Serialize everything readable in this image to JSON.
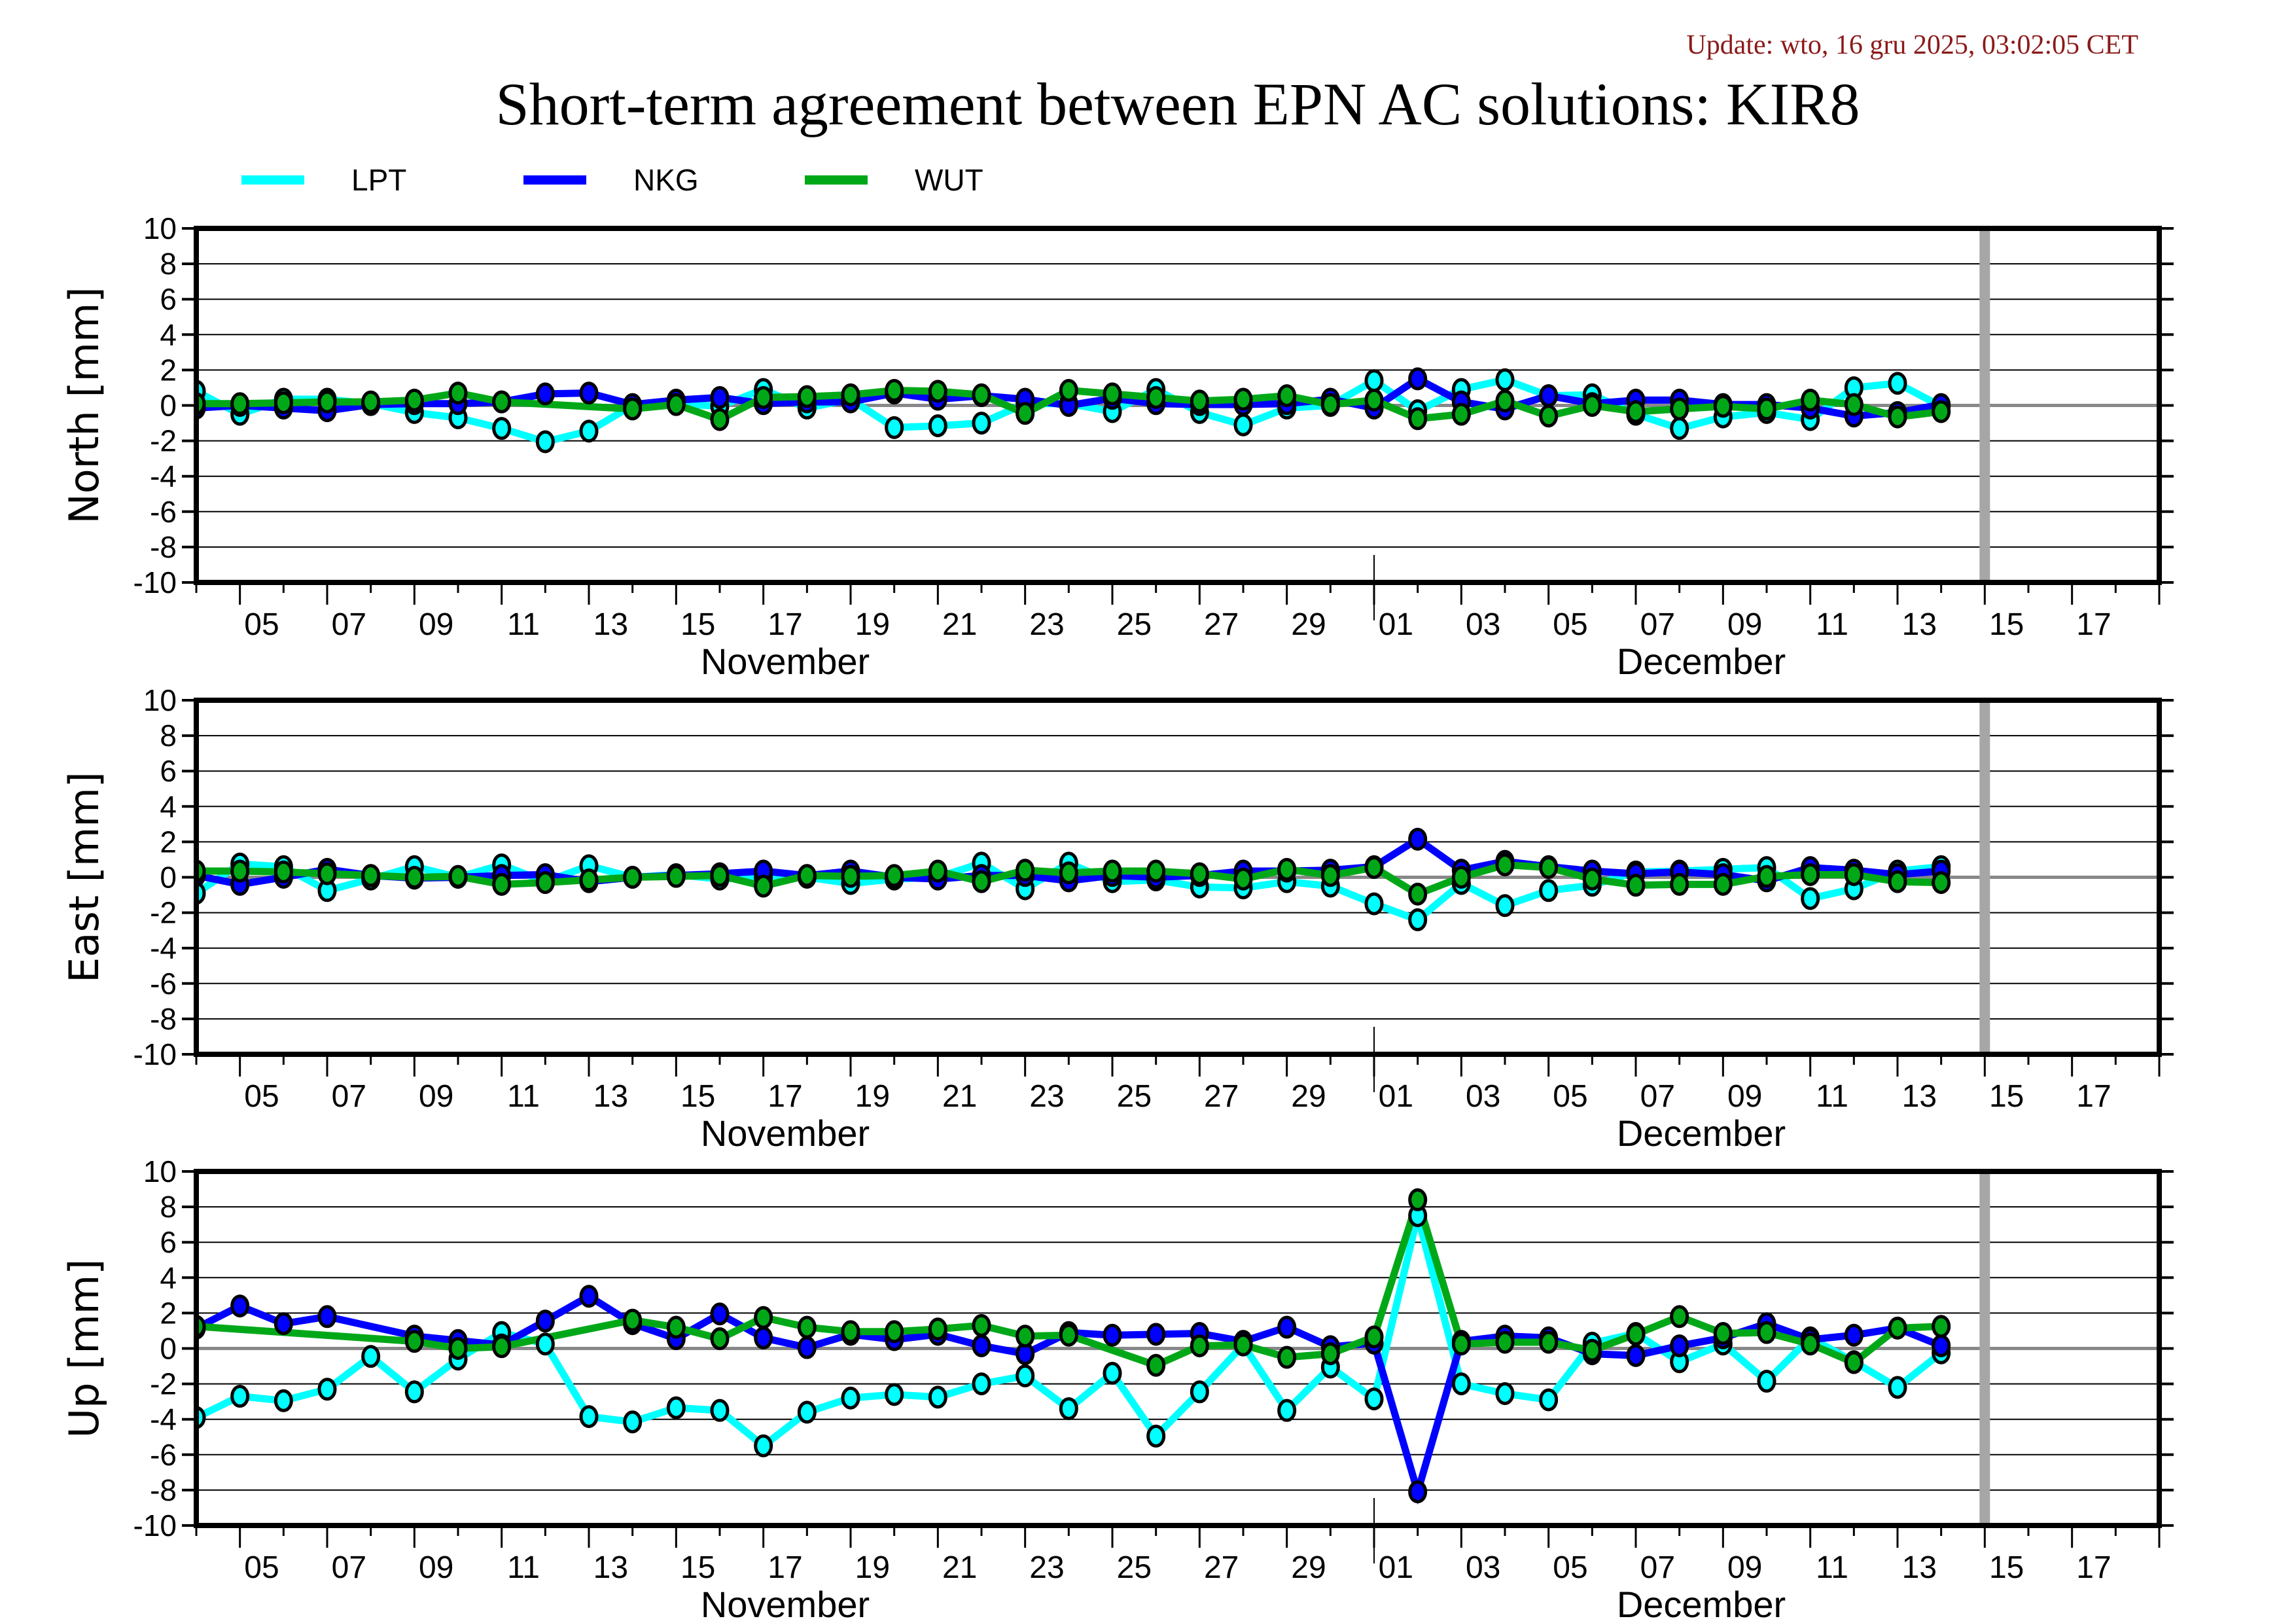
{
  "header": {
    "update": "Update: wto, 16 gru 2025, 03:02:05 CET",
    "title": "Short-term agreement between EPN AC solutions: KIR8"
  },
  "chart_data": {
    "type": "line",
    "title": "Short-term agreement between EPN AC solutions: KIR8",
    "station": "KIR8",
    "legend": {
      "placement": "top-left",
      "entries": [
        {
          "name": "LPT",
          "color": "#00ffff"
        },
        {
          "name": "NKG",
          "color": "#0000ff"
        },
        {
          "name": "WUT",
          "color": "#00a818"
        }
      ]
    },
    "x_axis": {
      "type": "date",
      "range": [
        "2025-11-04",
        "2025-12-19"
      ],
      "tick_labels": [
        "05",
        "07",
        "09",
        "11",
        "13",
        "15",
        "17",
        "19",
        "21",
        "23",
        "25",
        "27",
        "29",
        "01",
        "03",
        "05",
        "07",
        "09",
        "11",
        "13",
        "15",
        "17"
      ],
      "tick_label_days": [
        5,
        7,
        9,
        11,
        13,
        15,
        17,
        19,
        21,
        23,
        25,
        27,
        29,
        31,
        33,
        35,
        37,
        39,
        41,
        43,
        45,
        47
      ],
      "month_labels": [
        {
          "label": "November",
          "center_day": 17.5
        },
        {
          "label": "December",
          "center_day": 38.5
        }
      ],
      "month_boundary_day": 31,
      "marker_line_day": 45
    },
    "y_ticks": [
      "10",
      "8",
      "6",
      "4",
      "2",
      "0",
      "-2",
      "-4",
      "-6",
      "-8",
      "-10"
    ],
    "grid": true,
    "day_offset_origin": "2025-11-01",
    "x_days": [
      4,
      5,
      6,
      7,
      8,
      9,
      10,
      11,
      12,
      13,
      14,
      15,
      16,
      17,
      18,
      19,
      20,
      21,
      22,
      23,
      24,
      25,
      26,
      27,
      28,
      29,
      30,
      31,
      32,
      33,
      34,
      35,
      36,
      37,
      38,
      39,
      40,
      41,
      42,
      43,
      44
    ],
    "panels": [
      {
        "id": "north",
        "ylabel": "North [mm]",
        "ylim": [
          -10,
          10
        ],
        "series": [
          {
            "name": "LPT",
            "values": [
              0.8,
              -0.5,
              0.35,
              0.35,
              0.1,
              -0.4,
              -0.7,
              -1.3,
              -2.05,
              -1.45,
              0.0,
              0.1,
              -0.05,
              0.9,
              -0.15,
              0.35,
              -1.25,
              -1.15,
              -1.0,
              0.1,
              0.1,
              -0.35,
              0.9,
              -0.4,
              -1.1,
              -0.15,
              0.0,
              1.4,
              -0.3,
              0.9,
              1.45,
              0.55,
              0.6,
              -0.5,
              -1.3,
              -0.65,
              -0.4,
              -0.8,
              1.0,
              1.25,
              -0.05
            ]
          },
          {
            "name": "NKG",
            "values": [
              -0.15,
              0.0,
              -0.15,
              -0.3,
              0.05,
              0.1,
              0.1,
              0.2,
              0.65,
              0.7,
              0.05,
              0.3,
              0.45,
              0.1,
              0.2,
              0.2,
              0.7,
              0.35,
              0.55,
              0.35,
              0.0,
              0.4,
              0.1,
              0.05,
              0.05,
              0.1,
              0.35,
              -0.15,
              1.5,
              0.2,
              -0.2,
              0.55,
              0.1,
              0.3,
              0.3,
              0.05,
              0.05,
              -0.15,
              -0.6,
              -0.4,
              0.05
            ]
          },
          {
            "name": "WUT",
            "values": [
              0.1,
              0.1,
              0.15,
              0.2,
              0.2,
              0.3,
              0.7,
              0.2,
              null,
              null,
              -0.2,
              0.05,
              -0.8,
              0.45,
              0.5,
              0.6,
              0.85,
              0.8,
              0.6,
              -0.45,
              0.85,
              0.65,
              0.45,
              0.25,
              0.35,
              0.55,
              0.05,
              0.3,
              -0.75,
              -0.5,
              0.25,
              -0.6,
              0.0,
              -0.35,
              -0.2,
              -0.05,
              -0.2,
              0.3,
              0.05,
              -0.65,
              -0.35
            ]
          }
        ]
      },
      {
        "id": "east",
        "ylabel": "East [mm]",
        "ylim": [
          -10,
          10
        ],
        "series": [
          {
            "name": "LPT",
            "values": [
              -0.9,
              0.75,
              0.6,
              -0.75,
              -0.1,
              0.6,
              0.0,
              0.7,
              -0.25,
              0.65,
              0.0,
              0.15,
              -0.1,
              0.0,
              0.0,
              -0.35,
              -0.1,
              0.0,
              0.8,
              -0.65,
              0.8,
              -0.25,
              -0.15,
              -0.55,
              -0.6,
              -0.25,
              -0.5,
              -1.5,
              -2.4,
              -0.35,
              -1.6,
              -0.75,
              -0.45,
              0.3,
              0.35,
              0.45,
              0.55,
              -1.2,
              -0.65,
              0.35,
              0.6
            ]
          },
          {
            "name": "NKG",
            "values": [
              0.1,
              -0.4,
              0.0,
              0.45,
              0.1,
              -0.05,
              0.0,
              0.1,
              0.15,
              -0.25,
              0.0,
              0.1,
              0.2,
              0.35,
              0.1,
              0.35,
              0.0,
              -0.1,
              0.1,
              0.1,
              -0.2,
              0.1,
              0.0,
              0.1,
              0.35,
              0.35,
              0.4,
              0.6,
              2.15,
              0.4,
              0.9,
              0.6,
              0.35,
              0.2,
              0.3,
              0.15,
              -0.2,
              0.55,
              0.4,
              0.15,
              0.35
            ]
          },
          {
            "name": "WUT",
            "values": [
              0.35,
              0.35,
              0.3,
              0.2,
              0.1,
              0.0,
              0.05,
              -0.4,
              -0.3,
              -0.15,
              0.0,
              0.05,
              0.1,
              -0.5,
              0.1,
              0.05,
              0.1,
              0.35,
              -0.25,
              0.4,
              0.25,
              0.35,
              0.35,
              0.2,
              -0.1,
              0.45,
              0.1,
              0.55,
              -0.95,
              0.0,
              0.7,
              0.55,
              -0.1,
              -0.45,
              -0.4,
              -0.4,
              0.05,
              0.15,
              0.15,
              -0.25,
              -0.3
            ]
          }
        ]
      },
      {
        "id": "up",
        "ylabel": "Up [mm]",
        "ylim": [
          -10,
          10
        ],
        "series": [
          {
            "name": "LPT",
            "values": [
              -3.9,
              -2.7,
              -2.95,
              -2.3,
              -0.45,
              -2.45,
              -0.6,
              0.9,
              0.25,
              -3.85,
              -4.15,
              -3.35,
              -3.5,
              -5.5,
              -3.6,
              -2.8,
              -2.6,
              -2.75,
              -2.0,
              -1.55,
              -3.4,
              -1.4,
              -4.95,
              -2.45,
              0.2,
              -3.5,
              -1.05,
              -2.85,
              7.5,
              -2.0,
              -2.55,
              -2.9,
              0.3,
              0.85,
              -0.75,
              0.25,
              -1.85,
              0.6,
              -0.75,
              -2.2,
              -0.25
            ]
          },
          {
            "name": "NKG",
            "values": [
              1.15,
              2.4,
              1.4,
              1.8,
              null,
              0.7,
              0.45,
              0.2,
              1.55,
              2.95,
              1.4,
              0.55,
              1.95,
              0.6,
              0.05,
              0.8,
              0.5,
              0.8,
              0.15,
              -0.3,
              0.9,
              0.75,
              0.8,
              0.85,
              0.4,
              1.2,
              0.1,
              0.3,
              -8.1,
              0.4,
              0.7,
              0.6,
              -0.3,
              -0.4,
              0.15,
              0.6,
              1.4,
              0.5,
              0.75,
              1.15,
              0.15
            ]
          },
          {
            "name": "WUT",
            "values": [
              1.25,
              null,
              null,
              null,
              null,
              0.4,
              0.0,
              0.1,
              null,
              null,
              1.6,
              1.2,
              0.55,
              1.75,
              1.2,
              0.95,
              0.95,
              1.1,
              1.3,
              0.7,
              0.75,
              null,
              -0.95,
              0.15,
              0.2,
              -0.5,
              -0.3,
              0.65,
              8.4,
              0.25,
              0.35,
              0.35,
              -0.1,
              0.8,
              1.8,
              0.85,
              0.9,
              0.25,
              -0.8,
              1.15,
              1.25
            ]
          }
        ]
      }
    ]
  }
}
